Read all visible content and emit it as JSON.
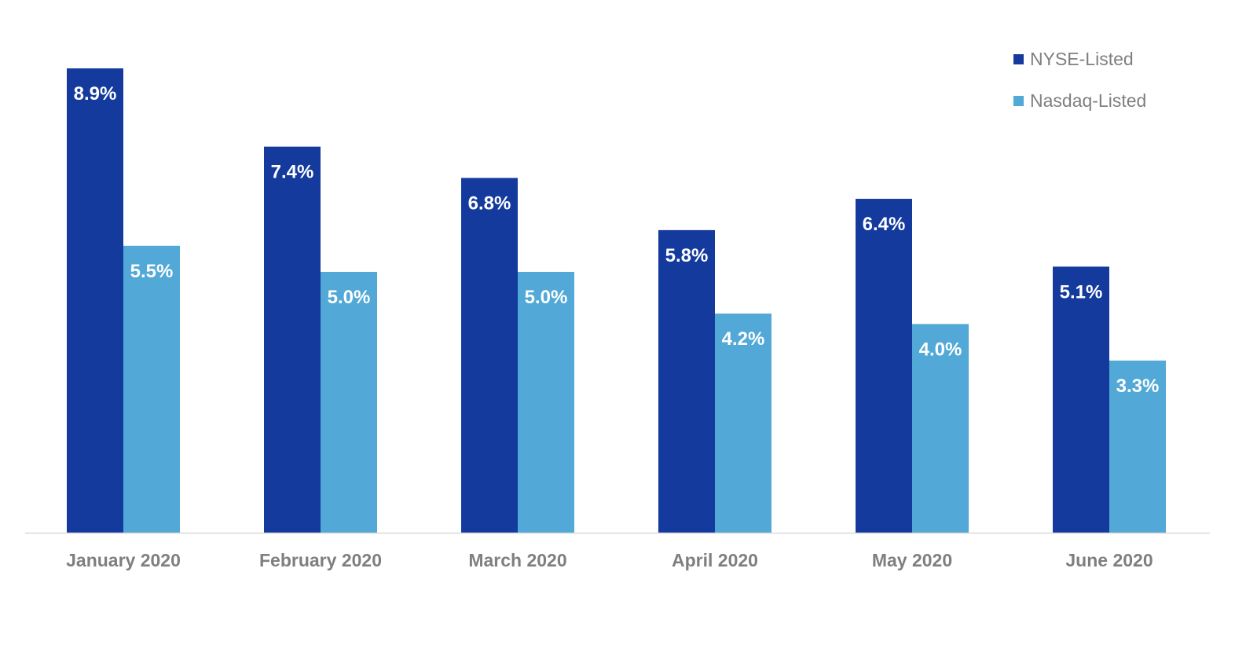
{
  "chart_data": {
    "type": "bar",
    "categories": [
      "January 2020",
      "February 2020",
      "March 2020",
      "April 2020",
      "May 2020",
      "June 2020"
    ],
    "series": [
      {
        "name": "NYSE-Listed",
        "values": [
          8.9,
          7.4,
          6.8,
          5.8,
          6.4,
          5.1
        ],
        "labels": [
          "8.9%",
          "7.4%",
          "6.8%",
          "5.8%",
          "6.4%",
          "5.1%"
        ],
        "color": "#133a9c"
      },
      {
        "name": "Nasdaq-Listed",
        "values": [
          5.5,
          5.0,
          5.0,
          4.2,
          4.0,
          3.3
        ],
        "labels": [
          "5.5%",
          "5.0%",
          "5.0%",
          "4.2%",
          "4.0%",
          "3.3%"
        ],
        "color": "#52a8d6"
      }
    ],
    "ylim": [
      0,
      9
    ],
    "grid": false,
    "legend_position": "top-right",
    "axis_color": "#d9d9d9",
    "tick_label_color": "#7f7f7f",
    "data_label_color": "#ffffff"
  }
}
